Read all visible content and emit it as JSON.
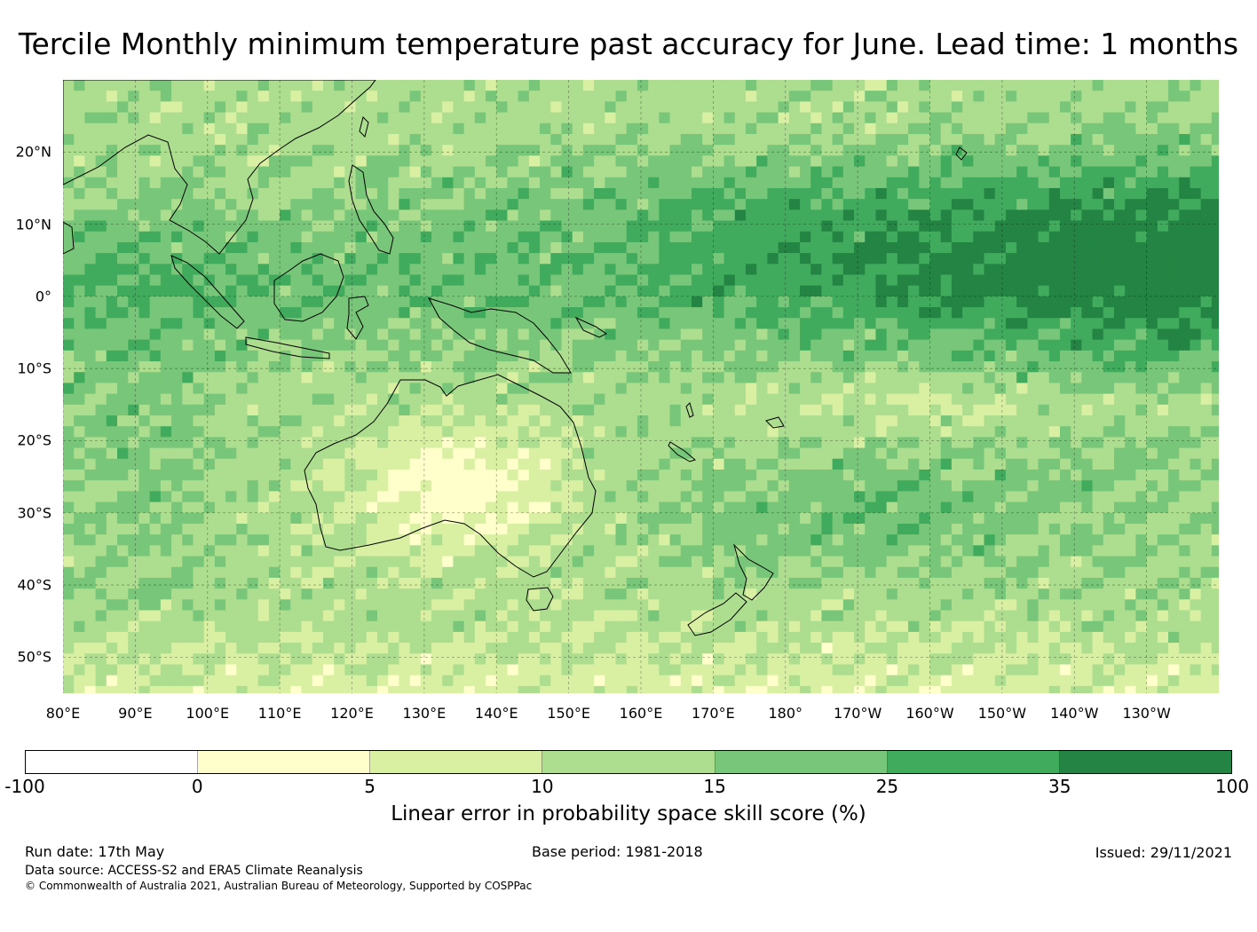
{
  "title": "Tercile Monthly minimum temperature past accuracy for June. Lead time: 1 months",
  "map": {
    "lon_range": [
      80,
      240
    ],
    "lat_range": [
      -55,
      30
    ],
    "lat_labels": [
      "20°N",
      "10°N",
      "0°",
      "10°S",
      "20°S",
      "30°S",
      "40°S",
      "50°S"
    ],
    "lat_values": [
      20,
      10,
      0,
      -10,
      -20,
      -30,
      -40,
      -50
    ],
    "lon_labels": [
      "80°E",
      "90°E",
      "100°E",
      "110°E",
      "120°E",
      "130°E",
      "140°E",
      "150°E",
      "160°E",
      "170°E",
      "180°",
      "170°W",
      "160°W",
      "150°W",
      "140°W",
      "130°W"
    ],
    "lon_values": [
      80,
      90,
      100,
      110,
      120,
      130,
      140,
      150,
      160,
      170,
      180,
      190,
      200,
      210,
      220,
      230
    ],
    "gridlines": "dashed",
    "coastline_color": "#000000"
  },
  "colorbar": {
    "label": "Linear error in probability space skill score (%)",
    "ticks": [
      "-100",
      "0",
      "5",
      "10",
      "15",
      "25",
      "35",
      "100"
    ],
    "colors": [
      "#ffffff",
      "#ffffcc",
      "#d9f0a3",
      "#addd8e",
      "#78c679",
      "#41ab5d",
      "#238443"
    ]
  },
  "footer": {
    "run_date": "Run date: 17th May",
    "base_period": "Base period: 1981-2018",
    "issued": "Issued: 29/11/2021",
    "data_source": "Data source: ACCESS-S2 and ERA5 Climate Reanalysis",
    "copyright": "© Commonwealth of Australia 2021, Australian Bureau of Meteorology, Supported by COSPPac"
  }
}
